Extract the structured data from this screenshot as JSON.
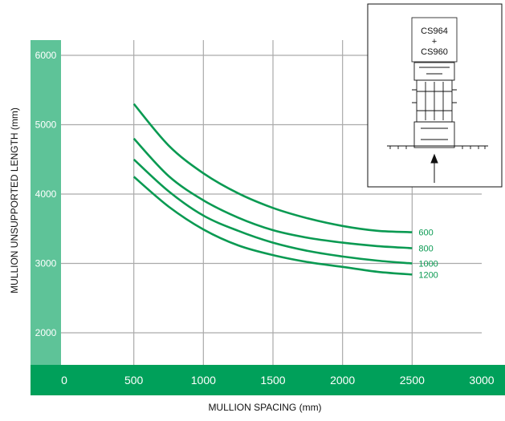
{
  "chart_data": {
    "type": "line",
    "xlabel": "MULLION SPACING (mm)",
    "ylabel": "MULLION UNSUPPORTED LENGTH (mm)",
    "xlim": [
      0,
      3000
    ],
    "ylim": [
      1500,
      6000
    ],
    "x_ticks": [
      "0",
      "500",
      "1000",
      "1500",
      "2000",
      "2500",
      "3000"
    ],
    "y_ticks": [
      "2000",
      "3000",
      "4000",
      "5000",
      "6000"
    ],
    "grid": true,
    "x": [
      500,
      750,
      1000,
      1250,
      1500,
      1750,
      2000,
      2250,
      2500
    ],
    "series": [
      {
        "name": "600",
        "values": [
          5300,
          4700,
          4300,
          4010,
          3800,
          3650,
          3540,
          3470,
          3450
        ]
      },
      {
        "name": "800",
        "values": [
          4800,
          4260,
          3910,
          3660,
          3480,
          3370,
          3300,
          3250,
          3220
        ]
      },
      {
        "name": "1000",
        "values": [
          4500,
          4040,
          3690,
          3470,
          3300,
          3180,
          3100,
          3040,
          3000
        ]
      },
      {
        "name": "1200",
        "values": [
          4250,
          3820,
          3490,
          3260,
          3120,
          3020,
          2950,
          2880,
          2840
        ]
      }
    ],
    "colors": {
      "line": "#0a9a52",
      "axis_band": "#00a05a",
      "y_band": "#5ec398",
      "grid": "#aaaaaa"
    },
    "inset": {
      "line1": "CS964",
      "line2": "+",
      "line3": "CS960"
    }
  }
}
